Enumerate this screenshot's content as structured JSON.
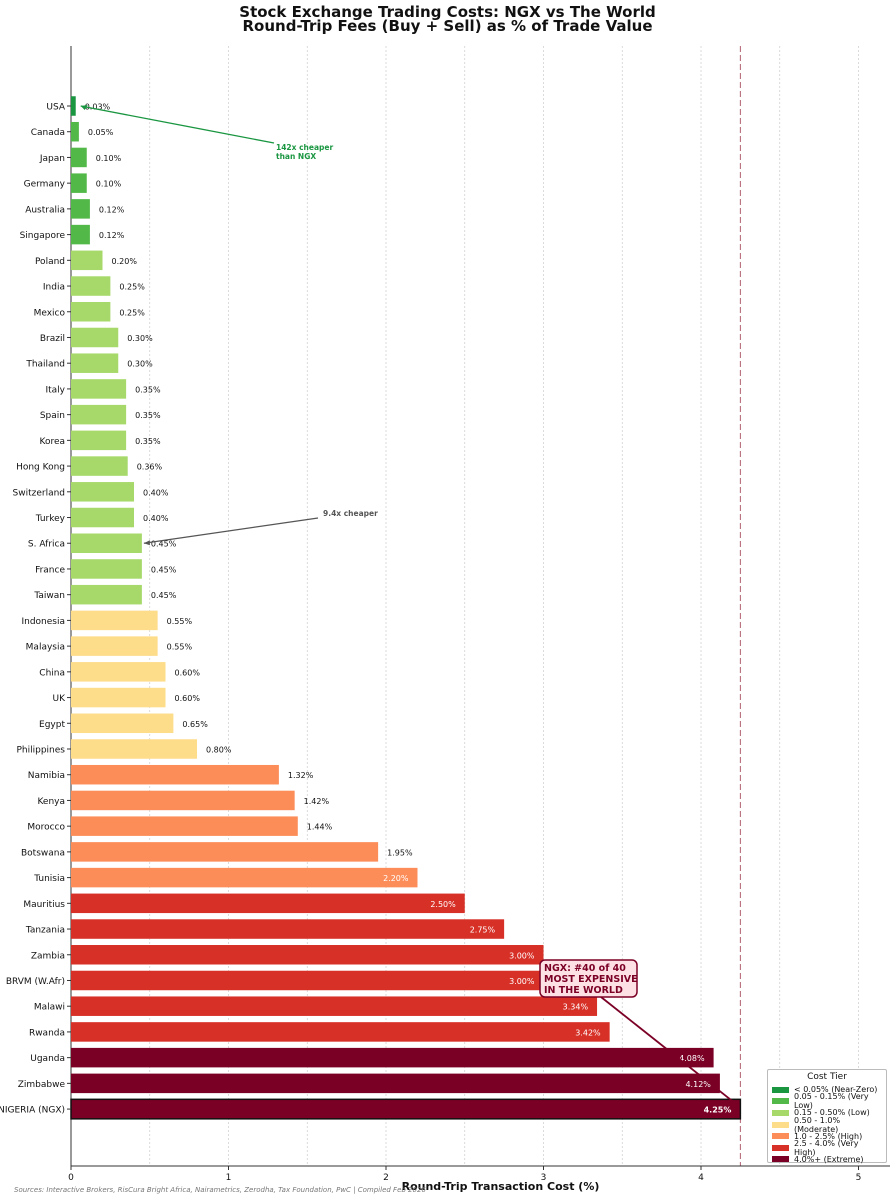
{
  "title_line1": "Stock Exchange Trading Costs: NGX vs The World",
  "title_line2": "Round-Trip Fees (Buy + Sell) as % of Trade Value",
  "footnote": "Sources: Interactive Brokers, RisCura Bright Africa, Nairametrics, Zerodha, Tax Foundation, PwC | Compiled Feb 2026",
  "legend": {
    "title": "Cost Tier",
    "items": [
      {
        "label": "< 0.05% (Near-Zero)",
        "color": "#1a9641"
      },
      {
        "label": "0.05 - 0.15% (Very Low)",
        "color": "#52b848"
      },
      {
        "label": "0.15 - 0.50% (Low)",
        "color": "#a6d96a"
      },
      {
        "label": "0.50 - 1.0% (Moderate)",
        "color": "#fddc8a"
      },
      {
        "label": "1.0 - 2.5% (High)",
        "color": "#fc8d59"
      },
      {
        "label": "2.5 - 4.0% (Very High)",
        "color": "#d73027"
      },
      {
        "label": "4.0%+ (Extreme)",
        "color": "#7b0026"
      }
    ]
  },
  "chart_data": {
    "type": "bar",
    "orientation": "horizontal",
    "xlabel": "Round-Trip Transaction Cost (%)",
    "ylabel": "",
    "xlim": [
      0,
      5.2
    ],
    "xticks": [
      0,
      1,
      2,
      3,
      4,
      5
    ],
    "grid": "vertical dotted",
    "legend_position": "lower-right",
    "reference_line": {
      "x": 4.25,
      "style": "dashed"
    },
    "categories": [
      "USA",
      "Canada",
      "Japan",
      "Germany",
      "Australia",
      "Singapore",
      "Poland",
      "India",
      "Mexico",
      "Brazil",
      "Thailand",
      "Italy",
      "Spain",
      "Korea",
      "Hong Kong",
      "Switzerland",
      "Turkey",
      "S. Africa",
      "France",
      "Taiwan",
      "Indonesia",
      "Malaysia",
      "China",
      "UK",
      "Egypt",
      "Philippines",
      "Namibia",
      "Kenya",
      "Morocco",
      "Botswana",
      "Tunisia",
      "Mauritius",
      "Tanzania",
      "Zambia",
      "BRVM (W.Afr)",
      "Malawi",
      "Rwanda",
      "Uganda",
      "Zimbabwe",
      "NIGERIA (NGX)"
    ],
    "values": [
      0.03,
      0.05,
      0.1,
      0.1,
      0.12,
      0.12,
      0.2,
      0.25,
      0.25,
      0.3,
      0.3,
      0.35,
      0.35,
      0.35,
      0.36,
      0.4,
      0.4,
      0.45,
      0.45,
      0.45,
      0.55,
      0.55,
      0.6,
      0.6,
      0.65,
      0.8,
      1.32,
      1.42,
      1.44,
      1.95,
      2.2,
      2.5,
      2.75,
      3.0,
      3.0,
      3.34,
      3.42,
      4.08,
      4.12,
      4.25
    ],
    "value_labels": [
      "0.03%",
      "0.05%",
      "0.10%",
      "0.10%",
      "0.12%",
      "0.12%",
      "0.20%",
      "0.25%",
      "0.25%",
      "0.30%",
      "0.30%",
      "0.35%",
      "0.35%",
      "0.35%",
      "0.36%",
      "0.40%",
      "0.40%",
      "0.45%",
      "0.45%",
      "0.45%",
      "0.55%",
      "0.55%",
      "0.60%",
      "0.60%",
      "0.65%",
      "0.80%",
      "1.32%",
      "1.42%",
      "1.44%",
      "1.95%",
      "2.20%",
      "2.50%",
      "2.75%",
      "3.00%",
      "3.00%",
      "3.34%",
      "3.42%",
      "4.08%",
      "4.12%",
      "4.25%"
    ],
    "annotations": [
      {
        "text": [
          "142x cheaper",
          "than NGX"
        ],
        "target": "USA",
        "color": "#1a9641"
      },
      {
        "text": [
          "9.4x cheaper"
        ],
        "target": "S. Africa",
        "color": "#555555"
      },
      {
        "text": [
          "NGX: #40 of 40",
          "MOST EXPENSIVE",
          "IN THE WORLD"
        ],
        "target": "NIGERIA (NGX)",
        "color": "#7b0026"
      }
    ]
  }
}
